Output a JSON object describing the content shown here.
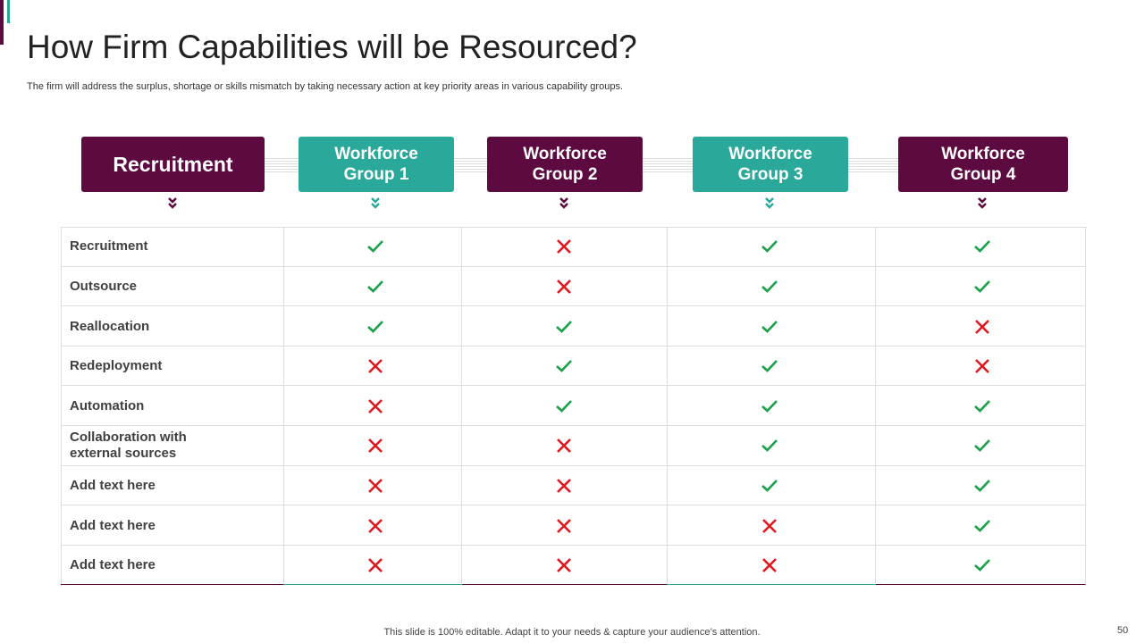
{
  "header": {
    "title": "How Firm Capabilities will be Resourced?",
    "subtitle": "The firm will address the surplus, shortage or skills mismatch by taking necessary action at key priority areas in various capability groups."
  },
  "table": {
    "headers": [
      "Recruitment",
      "Workforce Group 1",
      "Workforce Group 2",
      "Workforce Group 3",
      "Workforce Group 4"
    ],
    "rows": [
      {
        "label": "Recruitment",
        "cells": [
          true,
          false,
          true,
          true
        ]
      },
      {
        "label": "Outsource",
        "cells": [
          true,
          false,
          true,
          true
        ]
      },
      {
        "label": "Reallocation",
        "cells": [
          true,
          true,
          true,
          false
        ]
      },
      {
        "label": "Redeployment",
        "cells": [
          false,
          true,
          true,
          false
        ]
      },
      {
        "label": "Automation",
        "cells": [
          false,
          true,
          true,
          true
        ]
      },
      {
        "label": "Collaboration with external sources",
        "cells": [
          false,
          false,
          true,
          true
        ]
      },
      {
        "label": "Add text here",
        "cells": [
          false,
          false,
          true,
          true
        ]
      },
      {
        "label": "Add text here",
        "cells": [
          false,
          false,
          false,
          true
        ]
      },
      {
        "label": "Add text here",
        "cells": [
          false,
          false,
          false,
          true
        ]
      }
    ]
  },
  "footer": {
    "note": "This slide is 100% editable. Adapt it to your needs & capture your audience’s attention.",
    "page": "50"
  }
}
